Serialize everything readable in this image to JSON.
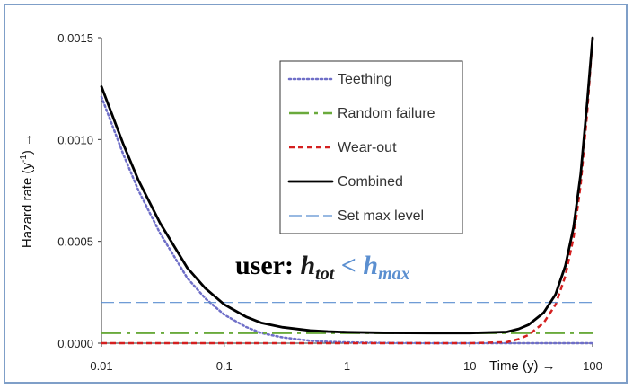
{
  "chart_data": {
    "type": "line",
    "xscale": "log",
    "xlim": [
      0.01,
      100
    ],
    "ylim": [
      0,
      0.0015
    ],
    "x_ticks": [
      "0.01",
      "0.1",
      "1",
      "10",
      "100"
    ],
    "y_ticks": [
      "0.0000",
      "0.0005",
      "0.0010",
      "0.0015"
    ],
    "xlabel": "Time (y) →",
    "ylabel_pre": "Hazard rate (y",
    "ylabel_sup": "-1",
    "ylabel_post": ") →",
    "grid": false,
    "legend_position": "upper-center",
    "series": [
      {
        "name": "Teething",
        "color": "#6f6fc8",
        "style": "dotted",
        "x": [
          0.01,
          0.015,
          0.02,
          0.03,
          0.05,
          0.07,
          0.1,
          0.15,
          0.2,
          0.3,
          0.5,
          0.7,
          1,
          2,
          5,
          10,
          20,
          50,
          100
        ],
        "y": [
          0.00121,
          0.00093,
          0.00075,
          0.00054,
          0.00032,
          0.00022,
          0.00014,
          8e-05,
          5e-05,
          2.8e-05,
          1.2e-05,
          7e-06,
          4e-06,
          1e-06,
          0.0,
          0.0,
          0.0,
          0.0,
          0.0
        ]
      },
      {
        "name": "Random failure",
        "color": "#6aaa3c",
        "style": "dash-dot",
        "x": [
          0.01,
          100
        ],
        "y": [
          5e-05,
          5e-05
        ]
      },
      {
        "name": "Wear-out",
        "color": "#d42020",
        "style": "dashed",
        "x": [
          0.01,
          1,
          10,
          20,
          25,
          30,
          40,
          50,
          60,
          70,
          80,
          90,
          100
        ],
        "y": [
          0.0,
          0.0,
          0.0,
          5e-06,
          2e-05,
          4e-05,
          0.0001,
          0.00019,
          0.00033,
          0.00052,
          0.00078,
          0.00112,
          0.0015
        ]
      },
      {
        "name": "Combined",
        "color": "#000000",
        "style": "solid",
        "x": [
          0.01,
          0.015,
          0.02,
          0.03,
          0.05,
          0.07,
          0.1,
          0.15,
          0.2,
          0.3,
          0.5,
          0.7,
          1,
          2,
          5,
          10,
          20,
          25,
          30,
          40,
          50,
          60,
          70,
          80,
          90,
          100
        ],
        "y": [
          0.00126,
          0.00098,
          0.0008,
          0.00059,
          0.00037,
          0.00027,
          0.00019,
          0.00013,
          0.0001,
          7.8e-05,
          6.2e-05,
          5.7e-05,
          5.4e-05,
          5.1e-05,
          5e-05,
          5e-05,
          5.5e-05,
          7e-05,
          9e-05,
          0.00015,
          0.00024,
          0.00038,
          0.00057,
          0.00083,
          0.00117,
          0.00155
        ]
      },
      {
        "name": "Set max level",
        "color": "#5b8fd0",
        "style": "long-dash",
        "x": [
          0.01,
          100
        ],
        "y": [
          0.0002,
          0.0002
        ]
      }
    ],
    "annotation": {
      "prefix": "user: ",
      "lhs": "h",
      "lhs_sub": "tot",
      "op": " < ",
      "rhs": "h",
      "rhs_sub": "max",
      "prefix_color": "#000000",
      "math_color_lhs": "#1a1a1a",
      "math_color_rhs": "#5b8fd0"
    }
  },
  "colors": {
    "frame": "#7f9fc8",
    "axis": "#333333"
  }
}
